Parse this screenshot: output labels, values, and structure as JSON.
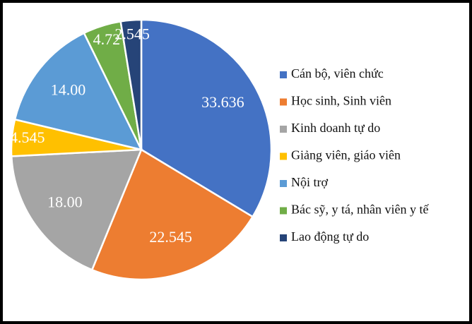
{
  "chart_data": {
    "type": "pie",
    "categories": [
      "Cán bộ, viên chức",
      "Học sinh, Sinh viên",
      "Kinh doanh tự do",
      "Giảng viên, giáo viên",
      "Nội trợ",
      "Bác sỹ, y tá, nhân viên y tế",
      "Lao động tự do"
    ],
    "values": [
      33.636,
      22.545,
      18,
      4.545,
      14,
      4.72,
      2.545
    ],
    "value_labels": [
      "33.636",
      "22.545",
      "18.00",
      "4.545",
      "14.00",
      "4.72",
      "2.545"
    ],
    "colors": [
      "#4472c4",
      "#ed7d31",
      "#a5a5a5",
      "#ffc000",
      "#5b9bd5",
      "#70ad47",
      "#264478"
    ],
    "legend": "right"
  }
}
